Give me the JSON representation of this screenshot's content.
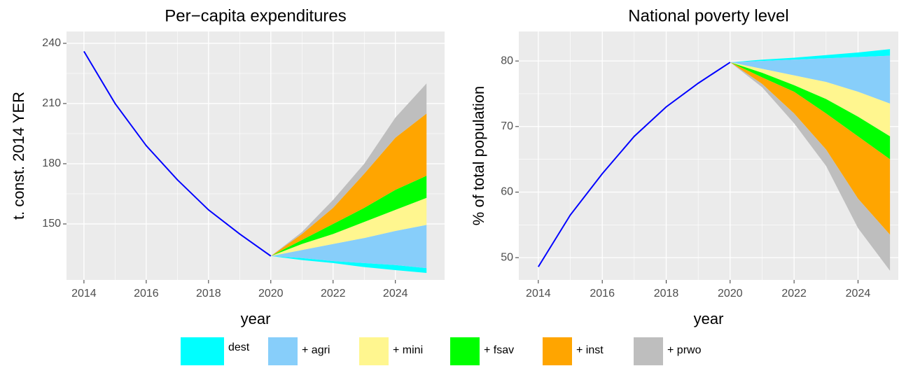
{
  "chart_data": [
    {
      "type": "line",
      "title": "Per−capita expenditures",
      "x_label": "year",
      "y_label": "t. const. 2014 YER",
      "xlim": [
        2013.44,
        2025.58
      ],
      "ylim": [
        122.1,
        245.9
      ],
      "xticks": [
        2014,
        2016,
        2018,
        2020,
        2022,
        2024
      ],
      "yticks": [
        150,
        180,
        210,
        240
      ],
      "grid": true,
      "x": [
        2014,
        2015,
        2016,
        2017,
        2018,
        2019,
        2020
      ],
      "values": [
        236,
        210,
        189,
        172,
        157,
        145,
        134
      ],
      "color": "#0000ff",
      "series": [
        {
          "name": "dest",
          "color": "#00ffff",
          "x": [
            2020,
            2021,
            2022,
            2023,
            2024,
            2025
          ],
          "lower": [
            134,
            132,
            130.5,
            128.5,
            127,
            125.6
          ],
          "upper": [
            134,
            133,
            131.5,
            130.5,
            129.5,
            128
          ]
        },
        {
          "name": "+ agri",
          "color": "#87cefa",
          "x": [
            2020,
            2021,
            2022,
            2023,
            2024,
            2025
          ],
          "lower": [
            134,
            133,
            131.5,
            130.5,
            129.5,
            128
          ],
          "upper": [
            134,
            137,
            140,
            143,
            146.5,
            149.5
          ]
        },
        {
          "name": "+ mini",
          "color": "#fff68f",
          "x": [
            2020,
            2021,
            2022,
            2023,
            2024,
            2025
          ],
          "lower": [
            134,
            137,
            140,
            143,
            146.5,
            149.5
          ],
          "upper": [
            134,
            140,
            145,
            151,
            157,
            163
          ]
        },
        {
          "name": "+ fsav",
          "color": "#00ff00",
          "x": [
            2020,
            2021,
            2022,
            2023,
            2024,
            2025
          ],
          "lower": [
            134,
            140,
            145,
            151,
            157,
            163
          ],
          "upper": [
            134,
            142,
            150,
            158,
            167,
            174
          ]
        },
        {
          "name": "+ inst",
          "color": "#ffa500",
          "x": [
            2020,
            2021,
            2022,
            2023,
            2024,
            2025
          ],
          "lower": [
            134,
            142,
            150,
            158,
            167,
            174
          ],
          "upper": [
            134,
            145,
            158,
            175,
            193,
            205
          ]
        },
        {
          "name": "+ prwo",
          "color": "#bebebe",
          "x": [
            2020,
            2021,
            2022,
            2023,
            2024,
            2025
          ],
          "lower": [
            134,
            145,
            158,
            175,
            193,
            205
          ],
          "upper": [
            134,
            146,
            162,
            180,
            203,
            220
          ]
        }
      ]
    },
    {
      "type": "line",
      "title": "National poverty level",
      "x_label": "year",
      "y_label": "% of total population",
      "xlim": [
        2013.39,
        2025.26
      ],
      "ylim": [
        46.6,
        84.5
      ],
      "xticks": [
        2014,
        2016,
        2018,
        2020,
        2022,
        2024
      ],
      "yticks": [
        50,
        60,
        70,
        80
      ],
      "grid": true,
      "x": [
        2014,
        2015,
        2016,
        2017,
        2018,
        2019,
        2020
      ],
      "values": [
        48.6,
        56.5,
        62.8,
        68.5,
        73.0,
        76.6,
        79.8
      ],
      "color": "#0000ff",
      "series": [
        {
          "name": "dest",
          "color": "#00ffff",
          "x": [
            2020,
            2021,
            2022,
            2023,
            2024,
            2025
          ],
          "lower": [
            79.8,
            80,
            80.2,
            80.4,
            80.6,
            80.8
          ],
          "upper": [
            79.8,
            80.2,
            80.5,
            80.9,
            81.3,
            81.8
          ]
        },
        {
          "name": "+ agri",
          "color": "#87cefa",
          "x": [
            2020,
            2021,
            2022,
            2023,
            2024,
            2025
          ],
          "lower": [
            79.8,
            78.8,
            77.8,
            76.8,
            75.3,
            73.5
          ],
          "upper": [
            79.8,
            80,
            80.2,
            80.4,
            80.6,
            80.8
          ]
        },
        {
          "name": "+ mini",
          "color": "#fff68f",
          "x": [
            2020,
            2021,
            2022,
            2023,
            2024,
            2025
          ],
          "lower": [
            79.8,
            78.2,
            76.3,
            74.2,
            71.5,
            68.5
          ],
          "upper": [
            79.8,
            78.8,
            77.8,
            76.8,
            75.3,
            73.5
          ]
        },
        {
          "name": "+ fsav",
          "color": "#00ff00",
          "x": [
            2020,
            2021,
            2022,
            2023,
            2024,
            2025
          ],
          "lower": [
            79.8,
            77.5,
            75.3,
            72,
            68.5,
            65
          ],
          "upper": [
            79.8,
            78.2,
            76.3,
            74.2,
            71.5,
            68.5
          ]
        },
        {
          "name": "+ inst",
          "color": "#ffa500",
          "x": [
            2020,
            2021,
            2022,
            2023,
            2024,
            2025
          ],
          "lower": [
            79.8,
            76.5,
            72,
            66.5,
            59,
            53.5
          ],
          "upper": [
            79.8,
            77.5,
            75.3,
            72,
            68.5,
            65
          ]
        },
        {
          "name": "+ prwo",
          "color": "#bebebe",
          "x": [
            2020,
            2021,
            2022,
            2023,
            2024,
            2025
          ],
          "lower": [
            79.8,
            76,
            70.5,
            64,
            54.5,
            48
          ],
          "upper": [
            79.8,
            76.5,
            72,
            66.5,
            59,
            53.5
          ]
        }
      ]
    }
  ]
}
